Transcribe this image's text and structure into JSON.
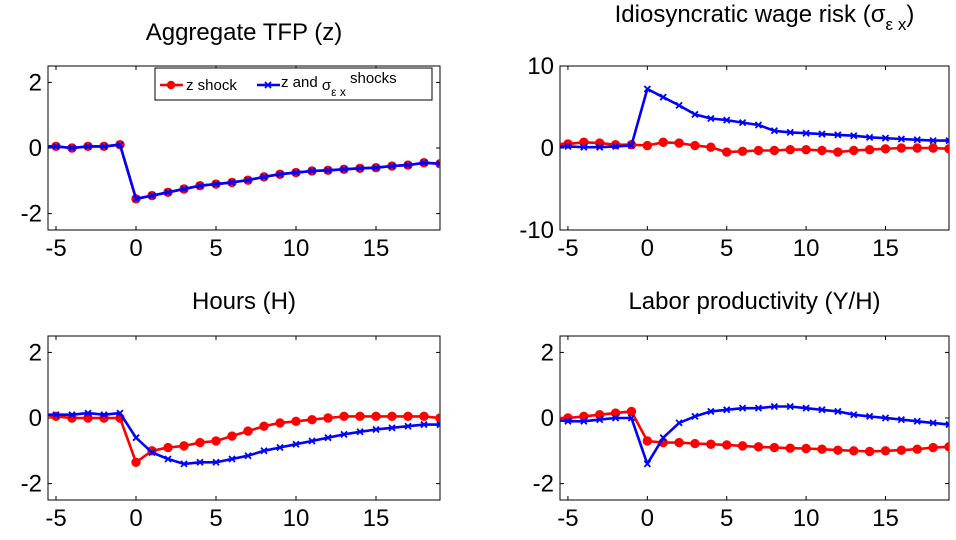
{
  "colors": {
    "z_shock": "#ff0000",
    "z_and_sigma_shocks": "#0000ff",
    "axis": "#000000",
    "background": "#ffffff"
  },
  "legend": {
    "entries": [
      {
        "label": "z shock",
        "color": "#ff0000",
        "marker": "circle"
      },
      {
        "label_main": "z and ",
        "label_sigma": "σ",
        "label_sub": "ε x",
        "label_tail": " shocks",
        "color": "#0000ff",
        "marker": "x"
      }
    ]
  },
  "chart_data": [
    {
      "type": "line",
      "title": "Aggregate TFP (z)",
      "xlim": [
        -5.5,
        19
      ],
      "ylim": [
        -2.5,
        2.5
      ],
      "xticks": [
        -5,
        0,
        5,
        10,
        15
      ],
      "yticks": [
        2,
        0,
        -2
      ],
      "x": [
        -6,
        -5,
        -4,
        -3,
        -2,
        -1,
        0,
        1,
        2,
        3,
        4,
        5,
        6,
        7,
        8,
        9,
        10,
        11,
        12,
        13,
        14,
        15,
        16,
        17,
        18,
        19
      ],
      "series": [
        {
          "name": "z shock",
          "color": "#ff0000",
          "marker": "circle",
          "values": [
            0.05,
            0.05,
            0.0,
            0.05,
            0.05,
            0.1,
            -1.55,
            -1.45,
            -1.35,
            -1.25,
            -1.15,
            -1.1,
            -1.05,
            -0.98,
            -0.88,
            -0.8,
            -0.75,
            -0.7,
            -0.68,
            -0.65,
            -0.62,
            -0.6,
            -0.55,
            -0.52,
            -0.45,
            -0.48
          ]
        },
        {
          "name": "z and σε x shocks",
          "color": "#0000ff",
          "marker": "x",
          "values": [
            0.05,
            0.05,
            0.0,
            0.05,
            0.05,
            0.1,
            -1.55,
            -1.45,
            -1.35,
            -1.25,
            -1.15,
            -1.1,
            -1.05,
            -0.98,
            -0.88,
            -0.8,
            -0.75,
            -0.7,
            -0.68,
            -0.65,
            -0.62,
            -0.6,
            -0.55,
            -0.52,
            -0.45,
            -0.48
          ]
        }
      ]
    },
    {
      "type": "line",
      "title_main": "Idiosyncratic wage risk (",
      "title_sigma": "σ",
      "title_sub": "ε x",
      "title_tail": ")",
      "xlim": [
        -5.5,
        19
      ],
      "ylim": [
        -10,
        10
      ],
      "xticks": [
        -5,
        0,
        5,
        10,
        15
      ],
      "yticks": [
        10,
        0,
        -10
      ],
      "x": [
        -6,
        -5,
        -4,
        -3,
        -2,
        -1,
        0,
        1,
        2,
        3,
        4,
        5,
        6,
        7,
        8,
        9,
        10,
        11,
        12,
        13,
        14,
        15,
        16,
        17,
        18,
        19
      ],
      "series": [
        {
          "name": "z shock",
          "color": "#ff0000",
          "marker": "circle",
          "values": [
            0.5,
            0.5,
            0.7,
            0.6,
            0.4,
            0.4,
            0.3,
            0.7,
            0.6,
            0.3,
            0.1,
            -0.5,
            -0.4,
            -0.3,
            -0.3,
            -0.2,
            -0.2,
            -0.3,
            -0.5,
            -0.3,
            -0.2,
            -0.1,
            0.0,
            0.0,
            0.0,
            -0.1
          ]
        },
        {
          "name": "z and σε x shocks",
          "color": "#0000ff",
          "marker": "x",
          "values": [
            0.2,
            0.2,
            0.1,
            0.1,
            0.2,
            0.3,
            7.2,
            6.2,
            5.2,
            4.1,
            3.6,
            3.4,
            3.1,
            2.8,
            2.1,
            1.9,
            1.8,
            1.7,
            1.6,
            1.5,
            1.3,
            1.2,
            1.1,
            1.0,
            0.9,
            0.9
          ]
        }
      ]
    },
    {
      "type": "line",
      "title": "Hours (H)",
      "xlim": [
        -5.5,
        19
      ],
      "ylim": [
        -2.5,
        2.5
      ],
      "xticks": [
        -5,
        0,
        5,
        10,
        15
      ],
      "yticks": [
        2,
        0,
        -2
      ],
      "x": [
        -6,
        -5,
        -4,
        -3,
        -2,
        -1,
        0,
        1,
        2,
        3,
        4,
        5,
        6,
        7,
        8,
        9,
        10,
        11,
        12,
        13,
        14,
        15,
        16,
        17,
        18,
        19
      ],
      "series": [
        {
          "name": "z shock",
          "color": "#ff0000",
          "marker": "circle",
          "values": [
            0.1,
            0.05,
            0.0,
            0.0,
            0.0,
            0.0,
            -1.35,
            -1.0,
            -0.9,
            -0.85,
            -0.75,
            -0.7,
            -0.55,
            -0.4,
            -0.25,
            -0.15,
            -0.1,
            -0.05,
            0.0,
            0.05,
            0.05,
            0.05,
            0.05,
            0.05,
            0.05,
            0.0
          ]
        },
        {
          "name": "z and σε x shocks",
          "color": "#0000ff",
          "marker": "x",
          "values": [
            0.1,
            0.1,
            0.1,
            0.15,
            0.1,
            0.15,
            -0.6,
            -1.05,
            -1.25,
            -1.4,
            -1.35,
            -1.35,
            -1.25,
            -1.15,
            -1.0,
            -0.9,
            -0.8,
            -0.7,
            -0.6,
            -0.5,
            -0.42,
            -0.35,
            -0.3,
            -0.25,
            -0.2,
            -0.2
          ]
        }
      ]
    },
    {
      "type": "line",
      "title": "Labor productivity (Y/H)",
      "xlim": [
        -5.5,
        19
      ],
      "ylim": [
        -2.5,
        2.5
      ],
      "xticks": [
        -5,
        0,
        5,
        10,
        15
      ],
      "yticks": [
        2,
        0,
        -2
      ],
      "x": [
        -6,
        -5,
        -4,
        -3,
        -2,
        -1,
        0,
        1,
        2,
        3,
        4,
        5,
        6,
        7,
        8,
        9,
        10,
        11,
        12,
        13,
        14,
        15,
        16,
        17,
        18,
        19
      ],
      "series": [
        {
          "name": "z shock",
          "color": "#ff0000",
          "marker": "circle",
          "values": [
            0.0,
            0.0,
            0.05,
            0.1,
            0.15,
            0.2,
            -0.7,
            -0.75,
            -0.75,
            -0.78,
            -0.8,
            -0.82,
            -0.85,
            -0.88,
            -0.9,
            -0.92,
            -0.93,
            -0.95,
            -0.98,
            -1.0,
            -1.02,
            -1.0,
            -0.98,
            -0.95,
            -0.9,
            -0.88
          ]
        },
        {
          "name": "z and σε x shocks",
          "color": "#0000ff",
          "marker": "x",
          "values": [
            -0.05,
            -0.1,
            -0.1,
            -0.05,
            0.0,
            0.0,
            -1.4,
            -0.6,
            -0.15,
            0.05,
            0.2,
            0.25,
            0.3,
            0.3,
            0.35,
            0.35,
            0.3,
            0.25,
            0.2,
            0.1,
            0.05,
            0.0,
            -0.05,
            -0.1,
            -0.15,
            -0.2
          ]
        }
      ]
    }
  ]
}
